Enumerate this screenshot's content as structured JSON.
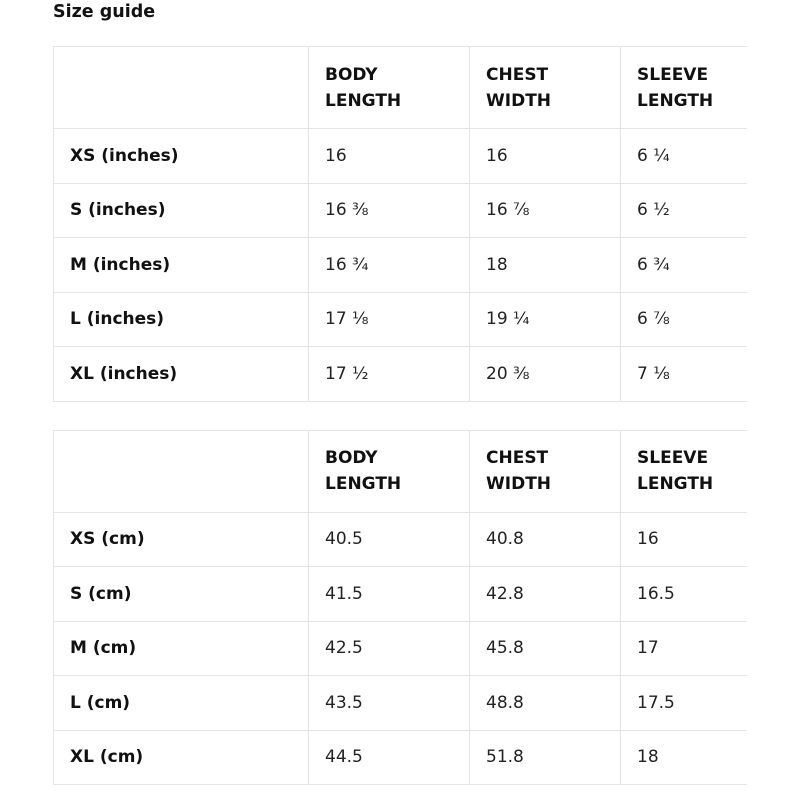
{
  "page": {
    "title": "Size guide"
  },
  "size_guide": {
    "tables": [
      {
        "name": "inches",
        "columns": [
          "BODY LENGTH",
          "CHEST WIDTH",
          "SLEEVE LENGTH"
        ],
        "rows": [
          {
            "label": "XS (inches)",
            "values": [
              "16",
              "16",
              "6 ¼"
            ]
          },
          {
            "label": "S (inches)",
            "values": [
              "16 ⅜",
              "16 ⅞",
              "6 ½"
            ]
          },
          {
            "label": "M (inches)",
            "values": [
              "16 ¾",
              "18",
              "6 ¾"
            ]
          },
          {
            "label": "L (inches)",
            "values": [
              "17 ⅛",
              "19 ¼",
              "6 ⅞"
            ]
          },
          {
            "label": "XL (inches)",
            "values": [
              "17 ½",
              "20 ⅜",
              "7 ⅛"
            ]
          }
        ]
      },
      {
        "name": "cm",
        "columns": [
          "BODY LENGTH",
          "CHEST WIDTH",
          "SLEEVE LENGTH"
        ],
        "rows": [
          {
            "label": "XS (cm)",
            "values": [
              "40.5",
              "40.8",
              "16"
            ]
          },
          {
            "label": "S (cm)",
            "values": [
              "41.5",
              "42.8",
              "16.5"
            ]
          },
          {
            "label": "M (cm)",
            "values": [
              "42.5",
              "45.8",
              "17"
            ]
          },
          {
            "label": "L (cm)",
            "values": [
              "43.5",
              "48.8",
              "17.5"
            ]
          },
          {
            "label": "XL (cm)",
            "values": [
              "44.5",
              "51.8",
              "18"
            ]
          }
        ]
      }
    ]
  }
}
